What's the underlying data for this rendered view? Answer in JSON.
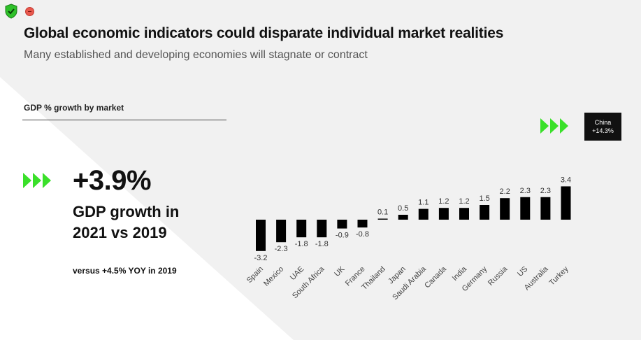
{
  "title": "Global economic indicators could disparate individual market realities",
  "subtitle": "Many established and developing economies will stagnate or contract",
  "section_label": "GDP % growth by market",
  "kpi": {
    "value": "+3.9%",
    "label_line1": "GDP growth in",
    "label_line2": "2021 vs 2019",
    "note": "versus +4.5% YOY in 2019"
  },
  "callout": {
    "name": "China",
    "value": "+14.3%"
  },
  "colors": {
    "accent": "#3ae02a",
    "bar": "#000000"
  },
  "chart_data": {
    "type": "bar",
    "title": "GDP % growth by market",
    "categories": [
      "Spain",
      "Mexico",
      "UAE",
      "South Africa",
      "UK",
      "France",
      "Thailand",
      "Japan",
      "Saudi Arabia",
      "Canada",
      "India",
      "Germany",
      "Russia",
      "US",
      "Australia",
      "Turkey"
    ],
    "values": [
      -3.2,
      -2.3,
      -1.8,
      -1.8,
      -0.9,
      -0.8,
      0.1,
      0.5,
      1.1,
      1.2,
      1.2,
      1.5,
      2.2,
      2.3,
      2.3,
      3.4
    ],
    "labels": [
      "-3.2",
      "-2.3",
      "-1.8",
      "-1.8",
      "-0.9",
      "-0.8",
      "0.1",
      "0.5",
      "1.1",
      "1.2",
      "1.2",
      "1.5",
      "2.2",
      "2.3",
      "2.3",
      "3.4"
    ],
    "xlabel": "",
    "ylabel": "",
    "ylim": [
      -3.2,
      3.4
    ],
    "grid": false,
    "legend": "none"
  }
}
